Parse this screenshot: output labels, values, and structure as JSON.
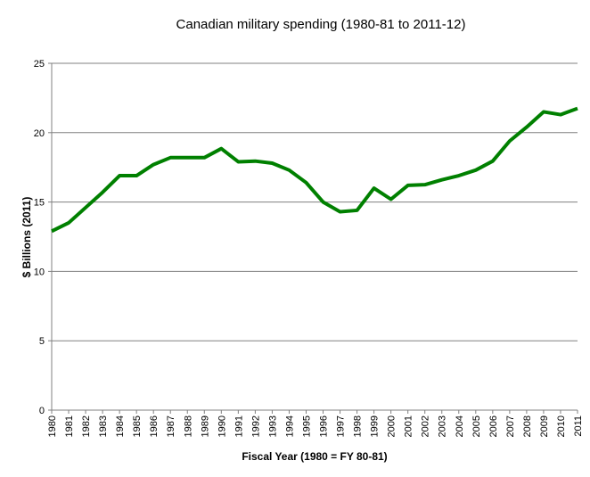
{
  "chart_data": {
    "type": "line",
    "title": "Canadian military spending (1980-81 to 2011-12)",
    "x_label": "Fiscal Year (1980 = FY 80-81)",
    "y_label": "$ Billions (2011)",
    "categories": [
      "1980",
      "1981",
      "1982",
      "1983",
      "1984",
      "1985",
      "1986",
      "1987",
      "1988",
      "1989",
      "1990",
      "1991",
      "1992",
      "1993",
      "1994",
      "1995",
      "1996",
      "1997",
      "1998",
      "1999",
      "2000",
      "2001",
      "2002",
      "2003",
      "2004",
      "2005",
      "2006",
      "2007",
      "2008",
      "2009",
      "2010",
      "2011"
    ],
    "series": [
      {
        "color": "#008000",
        "values": [
          12.9,
          13.5,
          14.6,
          15.7,
          16.9,
          16.9,
          17.7,
          18.2,
          18.2,
          18.2,
          18.85,
          17.9,
          17.95,
          17.8,
          17.3,
          16.4,
          15.0,
          14.3,
          14.4,
          16.0,
          15.2,
          16.2,
          16.25,
          16.6,
          16.9,
          17.3,
          17.95,
          19.4,
          20.4,
          21.5,
          21.3,
          21.75
        ]
      }
    ],
    "ylim": [
      0,
      25
    ],
    "yticks": [
      0,
      5,
      10,
      15,
      20,
      25
    ],
    "grid": true
  }
}
